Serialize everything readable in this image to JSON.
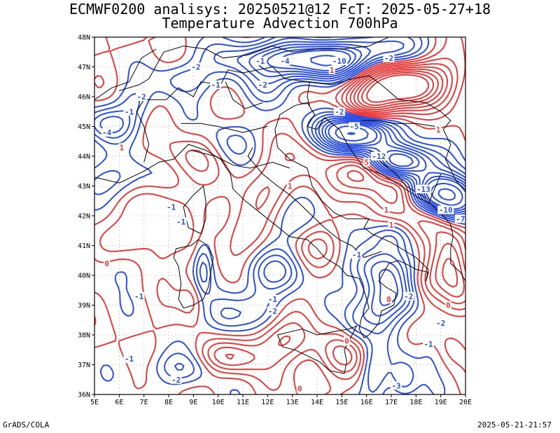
{
  "title_line1": "ECMWF0200 analisys: 20250521@12 FcT: 2025-05-27+18",
  "title_line2": "Temperature Advection 700hPa",
  "footer_left": "GrADS/COLA",
  "footer_right": "2025-05-21-21:57",
  "colors": {
    "positive": "#e83a3a",
    "negative": "#2b4fe0",
    "coast": "#000000",
    "grid": "#999999"
  },
  "chart_data": {
    "type": "contour-map",
    "x_ticks": [
      "5E",
      "6E",
      "7E",
      "8E",
      "9E",
      "10E",
      "11E",
      "12E",
      "13E",
      "14E",
      "15E",
      "16E",
      "17E",
      "18E",
      "19E",
      "20E"
    ],
    "y_ticks": [
      "48N",
      "47N",
      "46N",
      "45N",
      "44N",
      "43N",
      "42N",
      "41N",
      "40N",
      "39N",
      "38N",
      "37N",
      "36N"
    ],
    "lon_range": [
      5,
      20
    ],
    "lat_range": [
      36,
      48
    ],
    "contour_labels": [
      {
        "text": "-10",
        "lon": 14.9,
        "lat": 47.2,
        "sign": "neg"
      },
      {
        "text": "-2",
        "lon": 16.9,
        "lat": 47.3,
        "sign": "neg"
      },
      {
        "text": "-4",
        "lon": 12.7,
        "lat": 47.2,
        "sign": "neg"
      },
      {
        "text": "-1",
        "lon": 11.7,
        "lat": 47.2,
        "sign": "neg"
      },
      {
        "text": "-2",
        "lon": 9.1,
        "lat": 47.0,
        "sign": "neg"
      },
      {
        "text": "-1",
        "lon": 9.9,
        "lat": 46.4,
        "sign": "neg"
      },
      {
        "text": "-2",
        "lon": 11.8,
        "lat": 46.4,
        "sign": "neg"
      },
      {
        "text": "-2",
        "lon": 6.9,
        "lat": 46.0,
        "sign": "neg"
      },
      {
        "text": "-1",
        "lon": 6.4,
        "lat": 45.5,
        "sign": "neg"
      },
      {
        "text": "-4",
        "lon": 5.5,
        "lat": 44.8,
        "sign": "neg"
      },
      {
        "text": "-2",
        "lon": 14.9,
        "lat": 45.5,
        "sign": "neg"
      },
      {
        "text": "-5",
        "lon": 15.5,
        "lat": 45.0,
        "sign": "neg"
      },
      {
        "text": "-12",
        "lon": 16.5,
        "lat": 44.0,
        "sign": "neg"
      },
      {
        "text": "-13",
        "lon": 18.3,
        "lat": 42.9,
        "sign": "neg"
      },
      {
        "text": "-10",
        "lon": 19.2,
        "lat": 42.2,
        "sign": "neg"
      },
      {
        "text": "-7",
        "lon": 19.8,
        "lat": 41.9,
        "sign": "neg"
      },
      {
        "text": "-1",
        "lon": 8.1,
        "lat": 42.3,
        "sign": "neg"
      },
      {
        "text": "-1",
        "lon": 8.5,
        "lat": 41.8,
        "sign": "neg"
      },
      {
        "text": "-1",
        "lon": 6.8,
        "lat": 39.3,
        "sign": "neg"
      },
      {
        "text": "-1",
        "lon": 12.2,
        "lat": 39.2,
        "sign": "neg"
      },
      {
        "text": "-2",
        "lon": 12.2,
        "lat": 38.8,
        "sign": "neg"
      },
      {
        "text": "-1",
        "lon": 15.6,
        "lat": 40.7,
        "sign": "neg"
      },
      {
        "text": "-2",
        "lon": 17.7,
        "lat": 39.3,
        "sign": "neg"
      },
      {
        "text": "-1",
        "lon": 18.5,
        "lat": 37.7,
        "sign": "neg"
      },
      {
        "text": "-2",
        "lon": 19.0,
        "lat": 38.4,
        "sign": "neg"
      },
      {
        "text": "-3",
        "lon": 17.2,
        "lat": 36.3,
        "sign": "neg"
      },
      {
        "text": "-2",
        "lon": 8.3,
        "lat": 36.5,
        "sign": "neg"
      },
      {
        "text": "-1",
        "lon": 6.4,
        "lat": 37.2,
        "sign": "neg"
      },
      {
        "text": "1",
        "lon": 14.6,
        "lat": 46.9,
        "sign": "pos"
      },
      {
        "text": "1",
        "lon": 18.9,
        "lat": 44.9,
        "sign": "pos"
      },
      {
        "text": "1",
        "lon": 16.8,
        "lat": 42.2,
        "sign": "pos"
      },
      {
        "text": "5",
        "lon": 16.0,
        "lat": 43.8,
        "sign": "pos"
      },
      {
        "text": "1",
        "lon": 6.1,
        "lat": 44.3,
        "sign": "pos"
      },
      {
        "text": "1",
        "lon": 12.9,
        "lat": 43.0,
        "sign": "pos"
      },
      {
        "text": "1",
        "lon": 17.0,
        "lat": 41.7,
        "sign": "pos"
      },
      {
        "text": "0",
        "lon": 16.9,
        "lat": 39.2,
        "sign": "pos"
      },
      {
        "text": "0",
        "lon": 19.3,
        "lat": 39.0,
        "sign": "pos"
      },
      {
        "text": "0",
        "lon": 15.2,
        "lat": 37.8,
        "sign": "pos"
      },
      {
        "text": "0",
        "lon": 13.3,
        "lat": 36.2,
        "sign": "pos"
      },
      {
        "text": "0",
        "lon": 5.5,
        "lat": 40.4,
        "sign": "pos"
      }
    ]
  }
}
